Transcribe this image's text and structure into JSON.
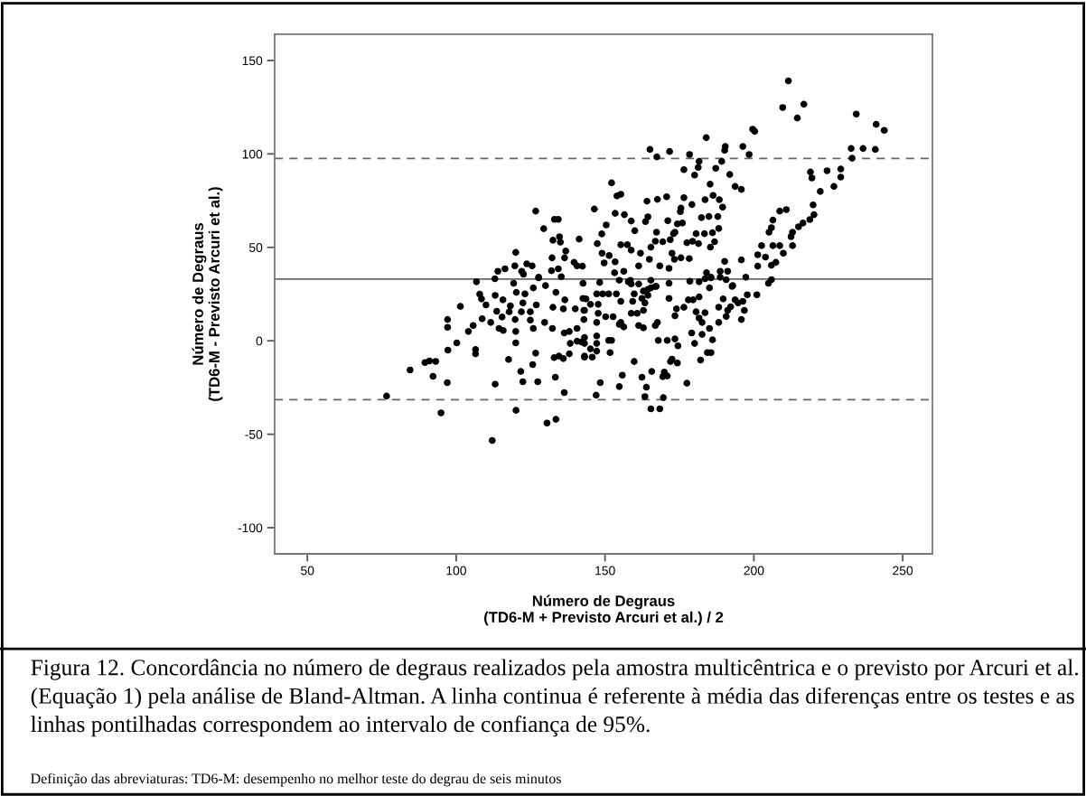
{
  "chart_data": {
    "type": "scatter",
    "xlabel": "Número de Degraus\n(TD6-M + Previsto Arcuri et al.) / 2",
    "ylabel": "Número de Degraus\n(TD6-M - Previsto Arcuri et al.)",
    "annotations": [
      "Figura 12. Concordância no número de degraus realizados pela amostra multicêntrica e o previsto por Arcuri et al. (Equação 1) pela análise de Bland-Altman. A linha continua é referente à média das diferenças entre os testes e as linhas pontilhadas correspondem ao intervalo de confiança de 95%.",
      "Definição das abreviaturas: TD6-M: desempenho no melhor teste do degrau de seis minutos"
    ],
    "xlim": [
      39,
      260
    ],
    "xticks": [
      50,
      100,
      150,
      200,
      250
    ],
    "ylim": [
      -114,
      164
    ],
    "yticks": [
      -100,
      -50,
      0,
      50,
      100,
      150
    ],
    "grid": false,
    "marker": "circle",
    "ref_lines": [
      {
        "axis": "y",
        "value": 33,
        "color": "#666666",
        "line_style": "solid"
      },
      {
        "axis": "y",
        "value": 97.6,
        "color": "#666666",
        "line_style": "dashed"
      },
      {
        "axis": "y",
        "value": -31.5,
        "color": "#666666",
        "line_style": "dashed"
      }
    ],
    "series": [
      {
        "color": "#000000",
        "x": [
          76.6,
          84.5,
          89.5,
          91,
          93.1,
          92.2,
          94.9,
          97,
          97.2,
          97.1,
          97.1,
          100.2,
          101.4,
          104.1,
          105.7,
          106.5,
          106.5,
          108.7,
          106.8,
          107.9,
          108.5,
          110,
          111.6,
          112.1,
          113.1,
          113,
          113.1,
          113.6,
          114.4,
          115.8,
          115.4,
          115.7,
          117.6,
          117.8,
          118.2,
          119.3,
          119.8,
          120,
          120,
          120.1,
          120.2,
          121.7,
          122.4,
          121.9,
          122.4,
          123.1,
          124.9,
          124.9,
          125.7,
          125.9,
          125.9,
          126.7,
          127.4,
          127.7,
          126.9,
          129.7,
          130,
          130.5,
          132.3,
          132.5,
          133.3,
          133.5,
          133.5,
          132.9,
          134.5,
          136,
          136.3,
          136.3,
          138,
          136.5,
          136,
          138.3,
          140.6,
          138,
          140,
          140.6,
          143.1,
          143.1,
          143.1,
          142.9,
          143.1,
          142.6,
          126.7,
          129.4,
          133,
          134.3,
          134.7,
          132.5,
          135,
          141.3,
          120,
          136.8,
          132.2,
          136.4,
          139.6,
          140.6,
          142.4,
          123.7,
          125.5,
          119.7,
          116.4,
          114,
          122,
          122.6,
          132,
          134.3,
          127.7,
          135.3,
          211.6,
          209.7,
          216.8,
          214.6,
          234.4,
          241.1,
          243.8,
          232.7,
          236.7,
          240.8,
          233,
          199.6,
          200.3,
          184,
          190.4,
          190.2,
          196.3,
          198.4,
          165.1,
          167.4,
          171.7,
          178.4,
          181.6,
          181.3,
          189.2,
          176.5,
          180.1,
          187.2,
          191.9,
          185.3,
          193.7,
          195.8,
          152.2,
          154,
          155.3,
          164.1,
          167.6,
          170.7,
          176.5,
          183.6,
          186.3,
          188.4,
          189.5,
          146.4,
          153.4,
          156.5,
          164.4,
          163.6,
          175.5,
          175.3,
          179.2,
          182.4,
          184.9,
          187.9,
          150.4,
          158.8,
          160,
          171.1,
          174.3,
          176,
          148.9,
          167.3,
          173,
          180.6,
          183.4,
          186.1,
          188.2,
          147.4,
          155.3,
          157.5,
          165.4,
          166.9,
          169.4,
          171.9,
          173.5,
          177.5,
          179.4,
          181.4,
          185.4,
          186.8,
          149,
          151.4,
          158.8,
          161.9,
          172.5,
          173.3,
          175.5,
          178.3,
          149.7,
          153.4,
          161.3,
          164.9,
          168.4,
          171.5,
          190.2,
          195.8,
          153.2,
          156.3,
          158.5,
          161.3,
          165.4,
          167.2,
          171.5,
          178.5,
          184.1,
          185.6,
          188.7,
          191.2,
          197.3,
          192.9,
          185.1,
          201.3,
          203.9,
          202.6,
          201.3,
          205.9,
          207.4,
          206.4,
          208.7,
          209.9,
          205.1,
          205.9,
          206.4,
          208.7,
          210.9,
          213,
          212.5,
          213,
          215,
          216.5,
          218.8,
          220.2,
          219.9,
          222.3,
          219,
          219.5,
          224.6,
          226.9,
          229.2,
          229.2,
          204.9,
          205.9,
          148.2,
          142.6,
          154.8,
          157.8,
          158.8,
          147.2,
          149.2,
          151.2,
          153.8,
          143.6,
          145.1,
          142.9,
          147.7,
          155.3,
          159.3,
          159.8,
          162.9,
          164.4,
          165.4,
          166.9,
          162.4,
          163.4,
          164.4,
          158.8,
          160.8,
          162.9,
          150.2,
          152.7,
          147.7,
          147.2,
          154.8,
          156.3,
          155.3,
          161.3,
          162.9,
          166.9,
          167.6,
          171.5,
          174,
          176.5,
          178,
          179.6,
          181.6,
          173.5,
          180.6,
          181.6,
          183.6,
          182.6,
          188.2,
          189.7,
          191.2,
          192.2,
          193.7,
          196.3,
          194.7,
          190.7,
          188.2,
          195.8,
          196.8,
          197.8,
          201,
          181.6,
          183.6,
          185.6,
          188.7,
          190.7,
          192.7,
          185.1,
          186.1,
          182.6,
          180.1,
          179.1,
          184.4,
          185.6,
          182.1,
          167.9,
          170.9,
          173.5,
          174.5,
          172,
          172.5,
          174.3,
          159.8,
          151.2,
          152.2,
          151.7,
          147.2,
          147.2,
          145.1,
          147.2,
          143.1,
          145.7,
          142.1,
          155.8,
          154.8,
          148.4,
          147,
          162.4,
          165.7,
          163.9,
          163.4,
          169.4,
          169.9,
          170.9,
          169.6,
          165.4,
          168.4,
          177.5
        ],
        "values": [
          -29.6,
          -15.6,
          -11.6,
          -10.8,
          -11,
          -19,
          -38.6,
          -22.4,
          -5,
          11.4,
          7.2,
          -1.1,
          18.4,
          5,
          8.2,
          -4.7,
          -7,
          11.8,
          31.6,
          25,
          22.4,
          19.2,
          9.8,
          -53.3,
          -23.2,
          33.2,
          24.3,
          15.8,
          6.6,
          5.5,
          12.7,
          21.9,
          -10,
          15.5,
          18.7,
          30.8,
          11.4,
          5,
          -1.1,
          -37.2,
          25.9,
          -16.4,
          -21.9,
          15.5,
          20.3,
          25.1,
          15.5,
          11.1,
          -12.7,
          6.6,
          28.3,
          -6.6,
          -21.9,
          34,
          19.2,
          9.8,
          29.5,
          -44,
          6.6,
          17.9,
          -19.5,
          -42,
          25.9,
          -9,
          -8.2,
          -9.5,
          -27.7,
          4.2,
          5,
          21.9,
          17.1,
          -1.4,
          -0.2,
          -7,
          17.1,
          6.6,
          1.8,
          -1.4,
          -8.2,
          11.4,
          16.3,
          22.7,
          69.4,
          60,
          65,
          65,
          55.7,
          53.8,
          52.8,
          54.4,
          47.3,
          48,
          44.4,
          44.4,
          42,
          40.1,
          39.9,
          41.2,
          40.1,
          40.1,
          38.5,
          37.2,
          37.2,
          35.6,
          37.5,
          38.5,
          33.7,
          34.3,
          139.1,
          124.8,
          126.6,
          119.2,
          121.3,
          115.8,
          112.6,
          102.9,
          102.9,
          102.4,
          97.7,
          113.2,
          112.1,
          108.7,
          104,
          101.9,
          104,
          99.7,
          102.4,
          98.4,
          101.3,
          99.7,
          96,
          92.8,
          96,
          91.6,
          88.7,
          92.3,
          89,
          83.8,
          82.6,
          81,
          84.5,
          77.5,
          78.4,
          74.7,
          75.7,
          77.1,
          76.6,
          75.5,
          77.8,
          75.5,
          71.5,
          70.5,
          68.2,
          67.5,
          66.3,
          63.8,
          71,
          69.1,
          72.9,
          65.9,
          66.5,
          66.5,
          62,
          64.1,
          58.9,
          64.3,
          62.6,
          63,
          57.2,
          58.1,
          57.3,
          57.3,
          57.3,
          57.8,
          60.1,
          52,
          51.4,
          51.4,
          50.1,
          53.3,
          53,
          54.1,
          58.1,
          52.5,
          53.3,
          52,
          50.1,
          53,
          46.9,
          45.6,
          48.5,
          46.9,
          46.9,
          43.6,
          44.4,
          44,
          41.7,
          42.3,
          40.1,
          43.6,
          40.1,
          38.8,
          42.5,
          43.3,
          36.4,
          37.2,
          32.4,
          30.4,
          32.4,
          29.1,
          30.8,
          31.9,
          36.4,
          34,
          37.2,
          37.2,
          34,
          29.5,
          28.3,
          39.9,
          44.8,
          50.9,
          46,
          40.4,
          42,
          50.9,
          50.9,
          46.9,
          58.1,
          60.5,
          64.6,
          69.4,
          70.2,
          50.9,
          55.7,
          58.1,
          61,
          63,
          64.9,
          67.5,
          72.7,
          79.9,
          90.3,
          87.1,
          91,
          82.6,
          91.9,
          87.6,
          30.8,
          32.7,
          31.2,
          30.8,
          32.4,
          31.6,
          30.4,
          25.1,
          25.1,
          25.1,
          25.1,
          22.4,
          19.5,
          16.3,
          19.5,
          21.1,
          21.1,
          25.1,
          26.6,
          27.5,
          28.3,
          29.1,
          22.7,
          20.3,
          24.3,
          14.7,
          14.7,
          16.3,
          12.9,
          12.9,
          14.7,
          9.8,
          8.8,
          7.4,
          9.8,
          8.2,
          6.9,
          8.2,
          9.8,
          22.7,
          17.1,
          17.9,
          21.9,
          21.9,
          23.5,
          13.4,
          15.5,
          12.2,
          15,
          9.8,
          18,
          22.4,
          16.3,
          18.2,
          21.9,
          21.1,
          20.3,
          13,
          9.8,
          11.4,
          16.3,
          24.6,
          24.6,
          31.6,
          33.2,
          33.7,
          34,
          32.7,
          29.1,
          6.6,
          0.5,
          3.4,
          -1.4,
          4.2,
          -6.3,
          -6.3,
          -10.3,
          0.2,
          0.2,
          1,
          -2.7,
          -11.1,
          -9.8,
          -11.9,
          -11.1,
          0.2,
          0.2,
          -6.3,
          2.6,
          -1.4,
          -4.3,
          -5.5,
          -8.7,
          -8.7,
          -0.6,
          -18.4,
          -24.5,
          -22.4,
          -29.1,
          -19.5,
          -16.4,
          -24.8,
          -29.9,
          -19.2,
          -16.7,
          -18.8,
          -30.4,
          -36.4,
          -36.4,
          -22.7
        ]
      }
    ]
  }
}
